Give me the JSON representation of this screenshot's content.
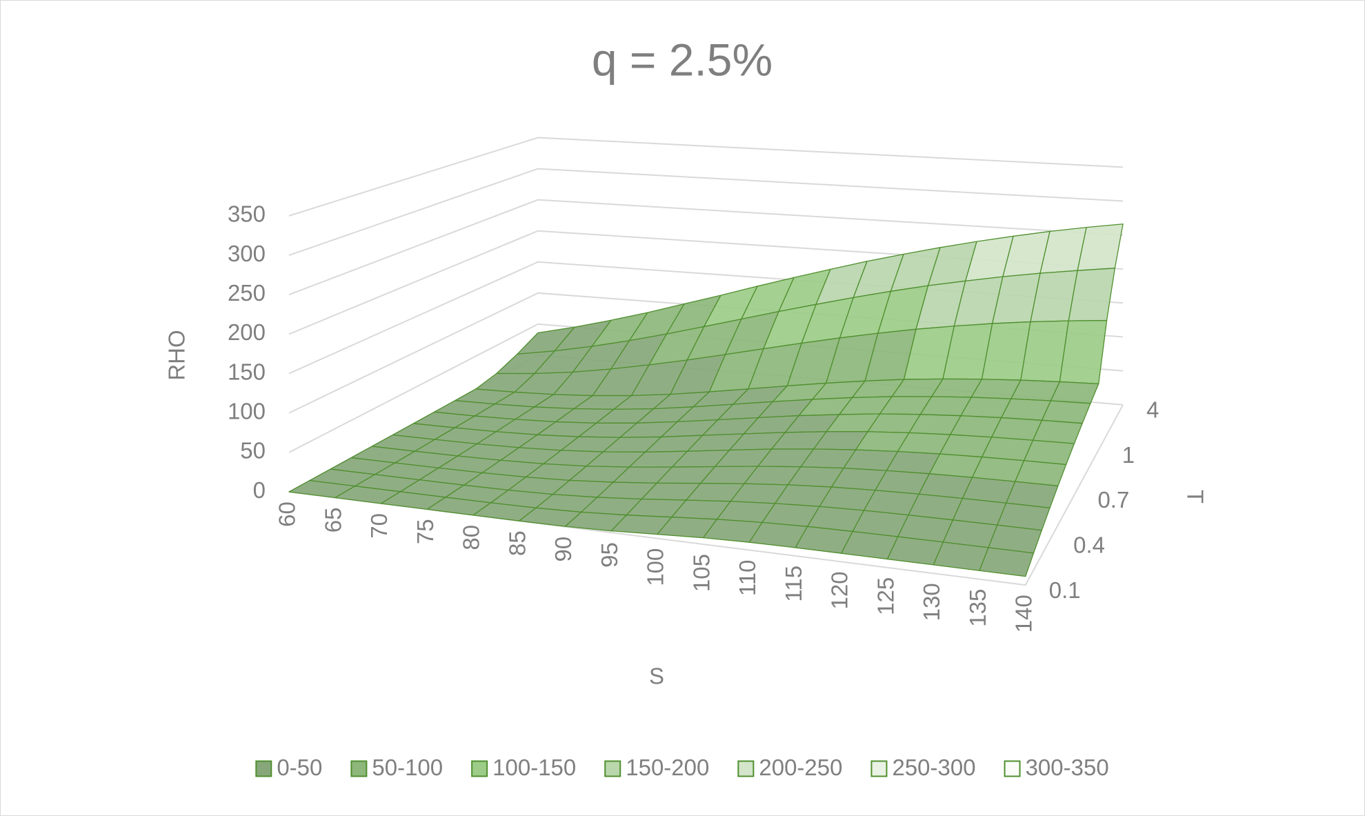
{
  "chart_data": {
    "type": "surface",
    "title": "q = 2.5%",
    "x_label": "S",
    "y_label": "T",
    "z_label": "RHO",
    "x_categories": [
      60,
      65,
      70,
      75,
      80,
      85,
      90,
      95,
      100,
      105,
      110,
      115,
      120,
      125,
      130,
      135,
      140
    ],
    "y_categories": [
      0.1,
      null,
      null,
      0.4,
      null,
      null,
      0.7,
      null,
      null,
      1,
      null,
      null,
      4
    ],
    "values": [
      [
        0,
        0,
        0,
        0,
        0,
        0.1,
        0.5,
        2.1,
        5,
        7.8,
        9.3,
        9.8,
        9.9,
        9.9,
        9.9,
        9.9,
        9.9
      ],
      [
        0,
        0,
        0,
        0,
        0.1,
        0.7,
        2.4,
        5.7,
        10,
        14.1,
        17,
        18.7,
        19.4,
        19.7,
        19.8,
        19.8,
        19.8
      ],
      [
        0,
        0,
        0,
        0.1,
        0.6,
        2.1,
        5.1,
        9.6,
        14.9,
        20,
        23.9,
        26.6,
        28.2,
        29,
        29.3,
        29.5,
        29.5
      ],
      [
        0,
        0,
        0.1,
        0.5,
        1.6,
        4,
        8.2,
        13.6,
        19.8,
        25.7,
        30.6,
        34.1,
        36.3,
        37.7,
        38.5,
        38.9,
        39
      ],
      [
        0,
        0,
        0.3,
        1.1,
        2.9,
        6.3,
        11.5,
        17.9,
        24.7,
        31.3,
        36.8,
        41.2,
        44,
        46,
        47.3,
        48,
        48.4
      ],
      [
        0,
        0.2,
        0.6,
        1.9,
        4.5,
        8.8,
        14.8,
        22,
        29.6,
        36.9,
        42.9,
        47.8,
        51.4,
        54,
        55.7,
        56.8,
        57.4
      ],
      [
        0.1,
        0.4,
        1.2,
        3,
        6.4,
        11.6,
        18.3,
        26.4,
        34.3,
        42,
        48.8,
        54.4,
        58.5,
        61.6,
        63.8,
        65.2,
        66.2
      ],
      [
        0.2,
        0.6,
        1.9,
        4.3,
        8.5,
        14.4,
        22.1,
        30.5,
        39.1,
        47.5,
        54.5,
        60.8,
        65.4,
        69,
        71.6,
        73.4,
        74.6
      ],
      [
        0.3,
        1.1,
        2.7,
        5.9,
        10.8,
        17.2,
        25.6,
        34.7,
        43.9,
        52.5,
        60.2,
        66.8,
        71.9,
        76.1,
        79.1,
        81.4,
        82.8
      ],
      [
        0.5,
        1.6,
        3.7,
        7.5,
        13.1,
        20.5,
        29.4,
        38.9,
        48.5,
        57.6,
        65.7,
        72.9,
        78.5,
        83,
        86.5,
        89,
        90.9
      ],
      [
        6.9,
        12.3,
        19.7,
        29.7,
        41.1,
        53.4,
        66.6,
        80,
        93,
        105.3,
        116.7,
        127,
        135.9,
        143.9,
        150.6,
        156.2,
        160.9
      ],
      [
        19.6,
        29.7,
        41.8,
        55.5,
        70.7,
        86.5,
        102.5,
        118.5,
        133.5,
        148,
        161.4,
        173.8,
        184.6,
        194.7,
        203.5,
        211.2,
        218.2
      ],
      [
        36,
        49.8,
        65.5,
        82.2,
        100.2,
        117.9,
        136.2,
        153.6,
        170.3,
        186.3,
        200.8,
        214.5,
        227,
        238.4,
        248.9,
        258.1,
        266.3
      ]
    ],
    "zlim": [
      0,
      350
    ],
    "zticks": [
      0,
      50,
      100,
      150,
      200,
      250,
      300,
      350
    ],
    "bands": [
      {
        "name": "0-50",
        "color": "#87a77a"
      },
      {
        "name": "50-100",
        "color": "#8db77b"
      },
      {
        "name": "100-150",
        "color": "#9ccc88"
      },
      {
        "name": "150-200",
        "color": "#b9d6ac"
      },
      {
        "name": "200-250",
        "color": "#d3e5ca"
      },
      {
        "name": "250-300",
        "color": "#e9f2e4"
      },
      {
        "name": "300-350",
        "color": "#f9fcf7"
      }
    ],
    "mesh_color": "#4f8f2e",
    "grid": true,
    "legend": "bottom"
  }
}
